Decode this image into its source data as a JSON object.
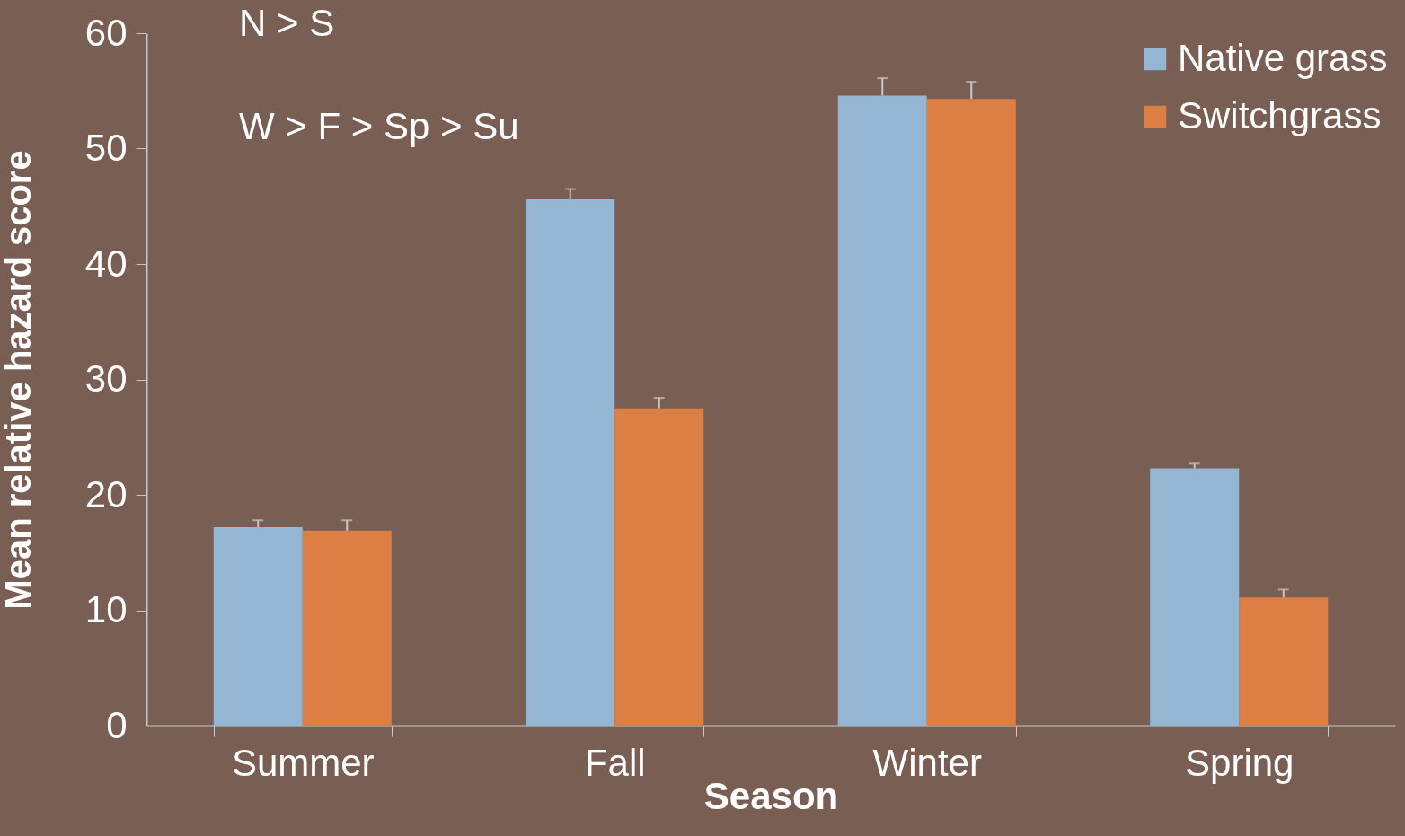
{
  "chart_data": {
    "type": "bar",
    "xlabel": "Season",
    "ylabel": "Mean relative hazard score",
    "categories": [
      "Summer",
      "Fall",
      "Winter",
      "Spring"
    ],
    "series": [
      {
        "name": "Native grass",
        "color": "#95b6d3",
        "values": [
          17.2,
          45.6,
          54.6,
          22.3
        ],
        "errors": [
          [
            17.2,
            17.8
          ],
          [
            45.6,
            46.5
          ],
          [
            54.6,
            56.1
          ],
          [
            22.3,
            22.7
          ]
        ]
      },
      {
        "name": "Switchgrass",
        "color": "#dc7f45",
        "values": [
          16.9,
          27.5,
          54.3,
          11.1
        ],
        "errors": [
          [
            16.9,
            17.8
          ],
          [
            27.5,
            28.4
          ],
          [
            54.3,
            55.8
          ],
          [
            11.1,
            11.8
          ]
        ]
      }
    ],
    "ylim": [
      0,
      60
    ],
    "yticks": [
      0,
      10,
      20,
      30,
      40,
      50,
      60
    ],
    "grid": false,
    "legend": "top right",
    "annotations": [
      "N > S",
      "W > F > Sp > Su"
    ]
  }
}
